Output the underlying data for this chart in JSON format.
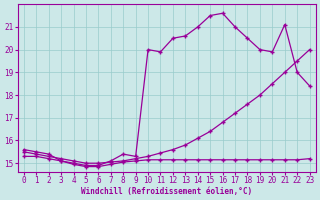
{
  "xlabel": "Windchill (Refroidissement éolien,°C)",
  "background_color": "#cce8e8",
  "grid_color": "#99cccc",
  "line_color": "#990099",
  "x_min": -0.5,
  "x_max": 23.5,
  "y_min": 14.6,
  "y_max": 22.0,
  "yticks": [
    15,
    16,
    17,
    18,
    19,
    20,
    21
  ],
  "xticks": [
    0,
    1,
    2,
    3,
    4,
    5,
    6,
    7,
    8,
    9,
    10,
    11,
    12,
    13,
    14,
    15,
    16,
    17,
    18,
    19,
    20,
    21,
    22,
    23
  ],
  "line1_y": [
    15.6,
    15.5,
    15.4,
    15.1,
    15.0,
    14.9,
    14.9,
    15.1,
    15.4,
    15.3,
    20.0,
    19.9,
    20.5,
    20.6,
    21.0,
    21.5,
    21.6,
    21.0,
    20.5,
    20.0,
    19.9,
    21.1,
    19.0,
    18.4
  ],
  "line2_y": [
    15.5,
    15.4,
    15.3,
    15.2,
    15.1,
    15.0,
    15.0,
    15.05,
    15.1,
    15.2,
    15.3,
    15.45,
    15.6,
    15.8,
    16.1,
    16.4,
    16.8,
    17.2,
    17.6,
    18.0,
    18.5,
    19.0,
    19.5,
    20.0
  ],
  "line3_y": [
    15.3,
    15.3,
    15.2,
    15.1,
    14.95,
    14.85,
    14.85,
    14.95,
    15.05,
    15.1,
    15.15,
    15.15,
    15.15,
    15.15,
    15.15,
    15.15,
    15.15,
    15.15,
    15.15,
    15.15,
    15.15,
    15.15,
    15.15,
    15.2
  ]
}
